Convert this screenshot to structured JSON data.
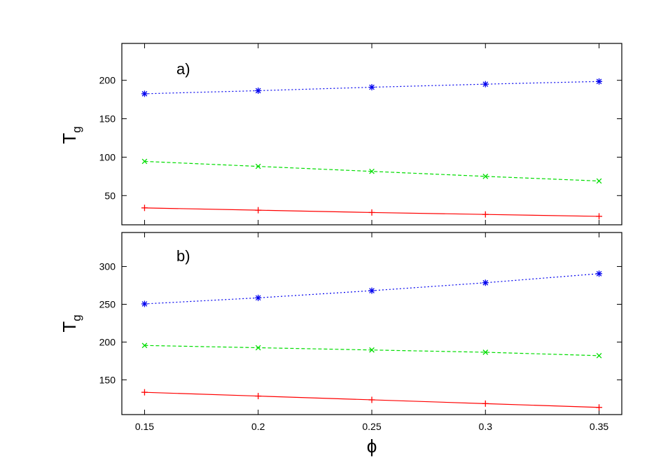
{
  "chart_data": [
    {
      "type": "line",
      "panel_label": "a)",
      "ylabel": "T",
      "ylabel_subscript": "g",
      "xlabel": "",
      "xlim": [
        0.14,
        0.36
      ],
      "ylim": [
        12,
        248
      ],
      "x_ticks": [
        0.15,
        0.2,
        0.25,
        0.3,
        0.35
      ],
      "y_ticks": [
        50,
        100,
        150,
        200
      ],
      "y_tick_labels": [
        "50",
        "100",
        "150",
        "200"
      ],
      "x_tick_labels_shown": false,
      "grid": false,
      "series": [
        {
          "color": "#ff0000",
          "line_style": "solid",
          "marker": "plus",
          "x": [
            0.15,
            0.2,
            0.25,
            0.3,
            0.35
          ],
          "y": [
            34,
            31,
            28,
            25.5,
            23
          ]
        },
        {
          "color": "#00dd00",
          "line_style": "dashed",
          "marker": "cross",
          "x": [
            0.15,
            0.2,
            0.25,
            0.3,
            0.35
          ],
          "y": [
            94.5,
            88,
            81.5,
            75,
            69
          ]
        },
        {
          "color": "#0000ee",
          "line_style": "dotted",
          "marker": "star",
          "x": [
            0.15,
            0.2,
            0.25,
            0.3,
            0.35
          ],
          "y": [
            182.5,
            186.5,
            191,
            195,
            198.5
          ]
        }
      ]
    },
    {
      "type": "line",
      "panel_label": "b)",
      "ylabel": "T",
      "ylabel_subscript": "g",
      "xlabel": "ϕ",
      "xlim": [
        0.14,
        0.36
      ],
      "ylim": [
        104,
        345
      ],
      "x_ticks": [
        0.15,
        0.2,
        0.25,
        0.3,
        0.35
      ],
      "x_tick_labels": [
        "0.15",
        "0.2",
        "0.25",
        "0.3",
        "0.35"
      ],
      "y_ticks": [
        150,
        200,
        250,
        300
      ],
      "y_tick_labels": [
        "150",
        "200",
        "250",
        "300"
      ],
      "grid": false,
      "series": [
        {
          "color": "#ff0000",
          "line_style": "solid",
          "marker": "plus",
          "x": [
            0.15,
            0.2,
            0.25,
            0.3,
            0.35
          ],
          "y": [
            133.5,
            128.5,
            123.5,
            118.5,
            113.5
          ]
        },
        {
          "color": "#00dd00",
          "line_style": "dashed",
          "marker": "cross",
          "x": [
            0.15,
            0.2,
            0.25,
            0.3,
            0.35
          ],
          "y": [
            195.5,
            192.5,
            189.5,
            186.5,
            182
          ]
        },
        {
          "color": "#0000ee",
          "line_style": "dotted",
          "marker": "star",
          "x": [
            0.15,
            0.2,
            0.25,
            0.3,
            0.35
          ],
          "y": [
            250.5,
            258.5,
            268,
            278.5,
            290.5
          ]
        }
      ]
    }
  ]
}
